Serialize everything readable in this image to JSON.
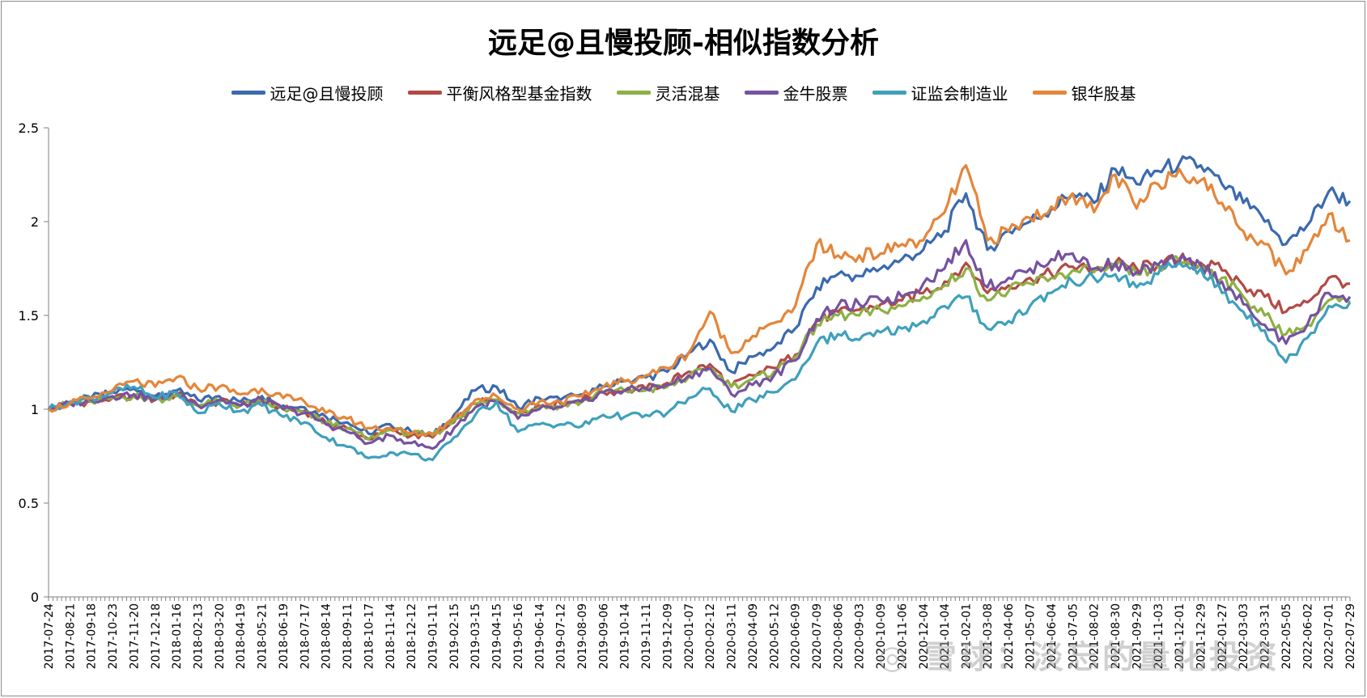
{
  "chart_data": {
    "type": "line",
    "title": "远足@且慢投顾-相似指数分析",
    "xlabel": "",
    "ylabel": "",
    "ylim": [
      0,
      2.5
    ],
    "yticks": [
      "0",
      "0.5",
      "1",
      "1.5",
      "2",
      "2.5"
    ],
    "legend_position": "top",
    "grid": false,
    "categories": [
      "2017-07-24",
      "2017-08-21",
      "2017-09-18",
      "2017-10-23",
      "2017-11-20",
      "2017-12-18",
      "2018-01-16",
      "2018-02-13",
      "2018-03-20",
      "2018-04-19",
      "2018-05-21",
      "2018-06-19",
      "2018-07-17",
      "2018-08-14",
      "2018-09-11",
      "2018-10-17",
      "2018-11-14",
      "2018-12-12",
      "2019-01-11",
      "2019-02-15",
      "2019-03-15",
      "2019-04-15",
      "2019-05-16",
      "2019-06-14",
      "2019-07-12",
      "2019-08-09",
      "2019-09-06",
      "2019-10-14",
      "2019-11-11",
      "2019-12-09",
      "2020-01-07",
      "2020-02-12",
      "2020-03-11",
      "2020-04-09",
      "2020-05-12",
      "2020-06-09",
      "2020-07-09",
      "2020-08-06",
      "2020-09-03",
      "2020-10-09",
      "2020-11-06",
      "2020-12-04",
      "2021-01-04",
      "2021-02-01",
      "2021-03-08",
      "2021-04-06",
      "2021-05-07",
      "2021-06-04",
      "2021-07-05",
      "2021-08-02",
      "2021-08-30",
      "2021-09-29",
      "2021-11-03",
      "2021-12-01",
      "2021-12-29",
      "2022-01-27",
      "2022-03-03",
      "2022-03-31",
      "2022-05-05",
      "2022-06-02",
      "2022-07-01",
      "2022-07-29"
    ],
    "series": [
      {
        "name": "远足@且慢投顾",
        "color": "#3B6AAE",
        "values": [
          1.0,
          1.04,
          1.06,
          1.09,
          1.11,
          1.07,
          1.1,
          1.05,
          1.07,
          1.04,
          1.07,
          1.02,
          1.01,
          0.96,
          0.93,
          0.87,
          0.92,
          0.88,
          0.86,
          0.97,
          1.1,
          1.12,
          1.01,
          1.06,
          1.05,
          1.08,
          1.12,
          1.15,
          1.17,
          1.2,
          1.3,
          1.37,
          1.2,
          1.28,
          1.33,
          1.43,
          1.65,
          1.72,
          1.71,
          1.75,
          1.8,
          1.85,
          1.95,
          2.15,
          1.85,
          1.95,
          2.0,
          2.07,
          2.15,
          2.1,
          2.28,
          2.2,
          2.27,
          2.31,
          2.3,
          2.2,
          2.1,
          2.0,
          1.88,
          1.98,
          2.16,
          2.11
        ]
      },
      {
        "name": "平衡风格型基金指数",
        "color": "#B24A45",
        "values": [
          1.0,
          1.03,
          1.04,
          1.06,
          1.07,
          1.05,
          1.08,
          1.02,
          1.04,
          1.02,
          1.04,
          1.0,
          0.99,
          0.93,
          0.9,
          0.84,
          0.89,
          0.86,
          0.85,
          0.93,
          1.03,
          1.05,
          0.98,
          1.02,
          1.03,
          1.05,
          1.09,
          1.1,
          1.11,
          1.14,
          1.2,
          1.24,
          1.12,
          1.18,
          1.22,
          1.29,
          1.47,
          1.52,
          1.53,
          1.56,
          1.58,
          1.62,
          1.68,
          1.78,
          1.62,
          1.66,
          1.7,
          1.72,
          1.76,
          1.74,
          1.78,
          1.75,
          1.77,
          1.8,
          1.78,
          1.74,
          1.66,
          1.6,
          1.52,
          1.57,
          1.7,
          1.67
        ]
      },
      {
        "name": "灵活混基",
        "color": "#8DB044",
        "values": [
          1.0,
          1.03,
          1.04,
          1.06,
          1.07,
          1.05,
          1.07,
          1.02,
          1.04,
          1.02,
          1.04,
          1.0,
          0.98,
          0.93,
          0.9,
          0.84,
          0.89,
          0.87,
          0.86,
          0.94,
          1.03,
          1.05,
          0.98,
          1.01,
          1.02,
          1.04,
          1.09,
          1.1,
          1.1,
          1.12,
          1.17,
          1.22,
          1.12,
          1.16,
          1.2,
          1.28,
          1.45,
          1.5,
          1.5,
          1.53,
          1.55,
          1.6,
          1.66,
          1.75,
          1.58,
          1.63,
          1.67,
          1.7,
          1.74,
          1.73,
          1.76,
          1.72,
          1.76,
          1.79,
          1.77,
          1.7,
          1.6,
          1.5,
          1.4,
          1.45,
          1.58,
          1.57
        ]
      },
      {
        "name": "金牛股票",
        "color": "#7652A0",
        "values": [
          1.0,
          1.03,
          1.05,
          1.07,
          1.08,
          1.05,
          1.09,
          1.02,
          1.05,
          1.02,
          1.05,
          1.0,
          0.98,
          0.92,
          0.88,
          0.82,
          0.86,
          0.82,
          0.79,
          0.9,
          1.01,
          1.04,
          0.95,
          1.0,
          1.01,
          1.04,
          1.09,
          1.1,
          1.11,
          1.13,
          1.18,
          1.22,
          1.08,
          1.13,
          1.18,
          1.26,
          1.48,
          1.55,
          1.56,
          1.58,
          1.6,
          1.67,
          1.75,
          1.9,
          1.65,
          1.7,
          1.75,
          1.8,
          1.83,
          1.75,
          1.78,
          1.73,
          1.77,
          1.79,
          1.77,
          1.68,
          1.56,
          1.45,
          1.35,
          1.45,
          1.62,
          1.6
        ]
      },
      {
        "name": "证监会制造业",
        "color": "#3FA0BC",
        "values": [
          1.0,
          1.04,
          1.06,
          1.09,
          1.12,
          1.06,
          1.09,
          0.98,
          1.03,
          0.99,
          1.02,
          0.96,
          0.93,
          0.85,
          0.8,
          0.74,
          0.77,
          0.76,
          0.73,
          0.85,
          0.97,
          1.04,
          0.88,
          0.92,
          0.92,
          0.91,
          0.97,
          0.96,
          0.97,
          0.98,
          1.06,
          1.11,
          0.99,
          1.05,
          1.09,
          1.16,
          1.35,
          1.4,
          1.37,
          1.41,
          1.43,
          1.47,
          1.55,
          1.6,
          1.43,
          1.47,
          1.55,
          1.62,
          1.68,
          1.7,
          1.72,
          1.65,
          1.72,
          1.78,
          1.75,
          1.62,
          1.52,
          1.42,
          1.25,
          1.38,
          1.55,
          1.57
        ]
      },
      {
        "name": "银华股基",
        "color": "#E4863A",
        "values": [
          1.0,
          1.03,
          1.06,
          1.1,
          1.15,
          1.12,
          1.17,
          1.11,
          1.12,
          1.08,
          1.11,
          1.06,
          1.04,
          0.98,
          0.95,
          0.9,
          0.9,
          0.87,
          0.87,
          0.95,
          1.05,
          1.07,
          1.0,
          1.04,
          1.04,
          1.07,
          1.12,
          1.15,
          1.18,
          1.22,
          1.3,
          1.52,
          1.3,
          1.39,
          1.46,
          1.55,
          1.88,
          1.82,
          1.82,
          1.83,
          1.88,
          1.9,
          2.05,
          2.3,
          1.9,
          1.95,
          2.02,
          2.08,
          2.15,
          2.05,
          2.25,
          2.07,
          2.2,
          2.28,
          2.22,
          2.1,
          1.95,
          1.88,
          1.72,
          1.85,
          2.04,
          1.9
        ]
      }
    ]
  },
  "watermark": {
    "text": "◎ 雪球：淡忘的量化投资"
  }
}
